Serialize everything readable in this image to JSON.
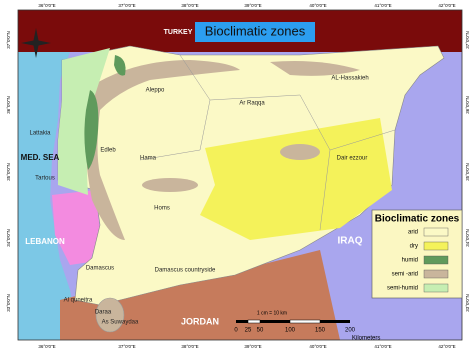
{
  "title": "Bioclimatic zones",
  "countries": [
    "TURKEY",
    "MED. SEA",
    "LEBANON",
    "JORDAN",
    "IRAQ"
  ],
  "cities": [
    "Aleppo",
    "AL-Hassakieh",
    "Ar Raqqa",
    "Lattakia",
    "Edleb",
    "Hama",
    "Tartous",
    "Dair ezzour",
    "Homs",
    "Damascus",
    "Damascus countryside",
    "Al quneitra",
    "Daraa",
    "As Suwaydaa"
  ],
  "legend": {
    "title": "Bioclimatic zones",
    "items": [
      {
        "label": "arid",
        "color": "#fbf9c6"
      },
      {
        "label": "dry",
        "color": "#f4f25a"
      },
      {
        "label": "humid",
        "color": "#5f9a5c"
      },
      {
        "label": "semi -arid",
        "color": "#c9b59c"
      },
      {
        "label": "semi-humid",
        "color": "#c6eeb2"
      }
    ]
  },
  "scale": {
    "note": "1 cm = 10 km",
    "ticks": [
      "0",
      "25",
      "50",
      "100",
      "150",
      "200"
    ],
    "unit": "Kilometers"
  },
  "coords": {
    "lon": [
      "36°0'0\"E",
      "37°0'0\"E",
      "38°0'0\"E",
      "39°0'0\"E",
      "40°0'0\"E",
      "41°0'0\"E",
      "42°0'0\"E"
    ],
    "lat": [
      "37°0'0\"N",
      "36°0'0\"N",
      "35°0'0\"N",
      "34°0'0\"N",
      "33°0'0\"N"
    ]
  }
}
